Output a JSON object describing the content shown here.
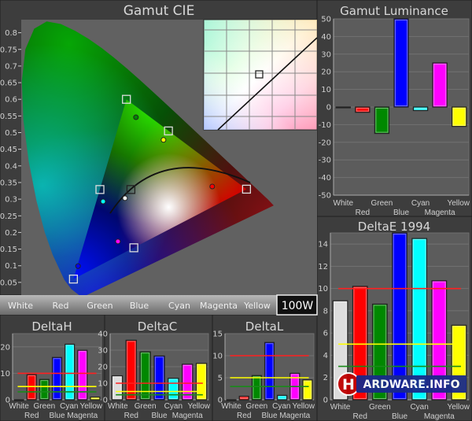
{
  "colors": {
    "White": "#dddddd",
    "Red": "#ff0000",
    "Green": "#008800",
    "Blue": "#0000ff",
    "Cyan": "#00ffff",
    "Magenta": "#ff00ff",
    "Yellow": "#ffff00",
    "line_red": "#ff2020",
    "line_yellow": "#ffff00",
    "line_green": "#1a8a1a"
  },
  "toolbar": {
    "buttons": [
      "White",
      "Red",
      "Green",
      "Blue",
      "Cyan",
      "Magenta",
      "Yellow"
    ],
    "level": "100W"
  },
  "watermark": "HARDWARE.INFO",
  "chart_data": [
    {
      "id": "cie",
      "type": "scatter",
      "title": "Gamut CIE",
      "yticks": [
        "0.05",
        "0.1",
        "0.15",
        "0.2",
        "0.25",
        "0.3",
        "0.35",
        "0.4",
        "0.45",
        "0.5",
        "0.55",
        "0.6",
        "0.65",
        "0.7",
        "0.75",
        "0.8"
      ],
      "grid": false,
      "targets": [
        {
          "name": "White",
          "x": 0.3127,
          "y": 0.329
        },
        {
          "name": "Red",
          "x": 0.64,
          "y": 0.33
        },
        {
          "name": "Green",
          "x": 0.3,
          "y": 0.6
        },
        {
          "name": "Blue",
          "x": 0.15,
          "y": 0.06
        },
        {
          "name": "Cyan",
          "x": 0.225,
          "y": 0.329
        },
        {
          "name": "Magenta",
          "x": 0.321,
          "y": 0.154
        },
        {
          "name": "Yellow",
          "x": 0.419,
          "y": 0.505
        }
      ],
      "measured": [
        {
          "name": "White",
          "x": 0.296,
          "y": 0.303
        },
        {
          "name": "Red",
          "x": 0.543,
          "y": 0.338
        },
        {
          "name": "Green",
          "x": 0.327,
          "y": 0.546
        },
        {
          "name": "Blue",
          "x": 0.163,
          "y": 0.099
        },
        {
          "name": "Cyan",
          "x": 0.234,
          "y": 0.293
        },
        {
          "name": "Magenta",
          "x": 0.276,
          "y": 0.173
        },
        {
          "name": "Yellow",
          "x": 0.405,
          "y": 0.478
        }
      ]
    },
    {
      "id": "lum",
      "type": "bar",
      "title": "Gamut Luminance",
      "categories": [
        "White",
        "Red",
        "Green",
        "Blue",
        "Cyan",
        "Magenta",
        "Yellow"
      ],
      "values": [
        0,
        -3,
        -15,
        50,
        -2,
        25,
        -11
      ],
      "ylim": [
        -50,
        50
      ],
      "yticks": [
        -50,
        -40,
        -30,
        -20,
        -10,
        0,
        10,
        20,
        30,
        40,
        50
      ],
      "grid": true,
      "reference_lines": []
    },
    {
      "id": "de",
      "type": "bar",
      "title": "DeltaE 1994",
      "categories": [
        "White",
        "Red",
        "Green",
        "Blue",
        "Cyan",
        "Magenta",
        "Yellow"
      ],
      "values": [
        8.9,
        10.2,
        8.6,
        15,
        14.5,
        10.7,
        6.7
      ],
      "ylim": [
        0,
        15
      ],
      "yticks": [
        0,
        2,
        4,
        6,
        8,
        10,
        12,
        14
      ],
      "grid": true,
      "reference_lines": [
        {
          "value": 10,
          "color": "line_red"
        },
        {
          "value": 5,
          "color": "line_yellow"
        },
        {
          "value": 3,
          "color": "line_green"
        }
      ]
    },
    {
      "id": "dh",
      "type": "bar",
      "title": "DeltaH",
      "categories": [
        "White",
        "Red",
        "Green",
        "Blue",
        "Cyan",
        "Magenta",
        "Yellow"
      ],
      "values": [
        0,
        9.5,
        7.7,
        16,
        21,
        18.7,
        1
      ],
      "ylim": [
        0,
        25
      ],
      "yticks": [
        0,
        10,
        20
      ],
      "grid": true,
      "reference_lines": [
        {
          "value": 10,
          "color": "line_red"
        },
        {
          "value": 5,
          "color": "line_yellow"
        },
        {
          "value": 3,
          "color": "line_green"
        }
      ]
    },
    {
      "id": "dc",
      "type": "bar",
      "title": "DeltaC",
      "categories": [
        "White",
        "Red",
        "Green",
        "Blue",
        "Cyan",
        "Magenta",
        "Yellow"
      ],
      "values": [
        14.5,
        36,
        29,
        26.5,
        13,
        21.5,
        22
      ],
      "ylim": [
        0,
        40
      ],
      "yticks": [
        0,
        10,
        20,
        30,
        40
      ],
      "grid": true,
      "reference_lines": [
        {
          "value": 10,
          "color": "line_red"
        },
        {
          "value": 5,
          "color": "line_yellow"
        },
        {
          "value": 3,
          "color": "line_green"
        }
      ]
    },
    {
      "id": "dl",
      "type": "bar",
      "title": "DeltaL",
      "categories": [
        "White",
        "Red",
        "Green",
        "Blue",
        "Cyan",
        "Magenta",
        "Yellow"
      ],
      "values": [
        0,
        0.8,
        5.5,
        13,
        1,
        6,
        4.5
      ],
      "ylim": [
        0,
        15
      ],
      "yticks": [
        0,
        5,
        10,
        15
      ],
      "grid": true,
      "reference_lines": [
        {
          "value": 10,
          "color": "line_red"
        },
        {
          "value": 5,
          "color": "line_yellow"
        },
        {
          "value": 3,
          "color": "line_green"
        }
      ]
    }
  ]
}
